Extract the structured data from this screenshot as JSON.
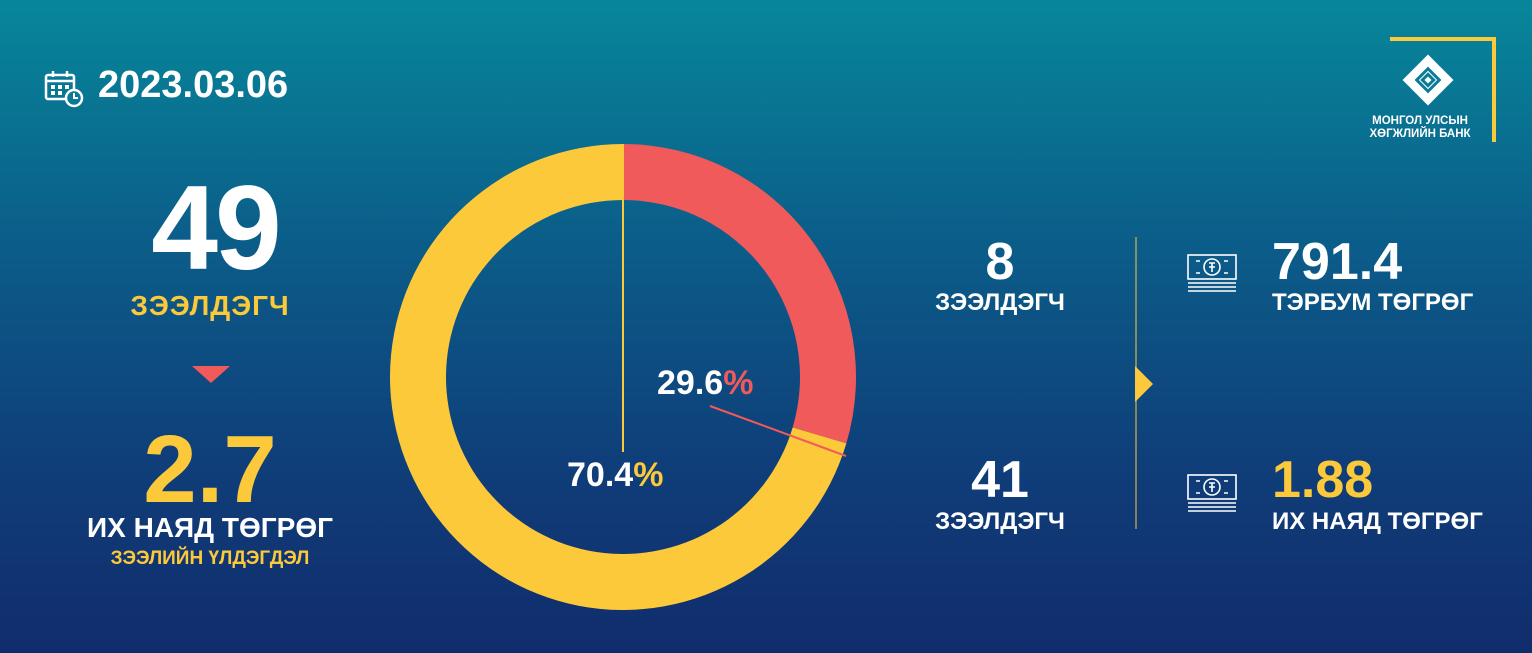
{
  "date": "2023.03.06",
  "logo": {
    "line1": "МОНГОЛ УЛСЫН",
    "line2": "ХӨГЖЛИЙН БАНК"
  },
  "left": {
    "borrowers_count": "49",
    "borrowers_label": "ЗЭЭЛДЭГЧ",
    "amount": "2.7",
    "amount_unit": "ИХ НАЯД ТӨГРӨГ",
    "amount_label": "ЗЭЭЛИЙН ҮЛДЭГДЭЛ"
  },
  "chart_data": {
    "type": "pie",
    "donut": true,
    "slices": [
      {
        "label": "29.6",
        "value": 29.6,
        "color": "#f05a5b"
      },
      {
        "label": "70.4",
        "value": 70.4,
        "color": "#fcc93a"
      }
    ],
    "percent_sign": "%"
  },
  "right": {
    "group1": {
      "count": "8",
      "count_label": "ЗЭЭЛДЭГЧ",
      "amount": "791.4",
      "amount_unit": "ТЭРБУМ ТӨГРӨГ"
    },
    "group2": {
      "count": "41",
      "count_label": "ЗЭЭЛДЭГЧ",
      "amount": "1.88",
      "amount_unit": "ИХ НАЯД ТӨГРӨГ"
    }
  },
  "colors": {
    "accent_yellow": "#fcc93a",
    "accent_red": "#f05a5b"
  }
}
